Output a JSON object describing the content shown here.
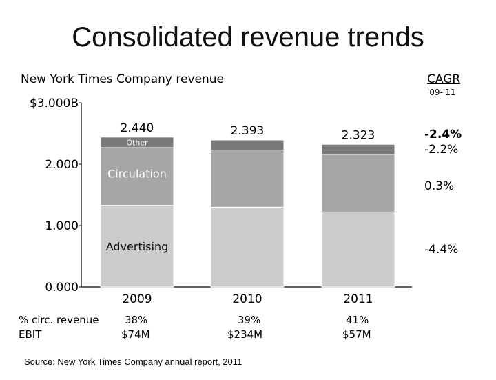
{
  "page_title": "Consolidated revenue trends",
  "cagr": {
    "heading": "CAGR",
    "period": "'09-'11",
    "values": [
      "-2.4%",
      "-2.2%",
      "0.3%",
      "-4.4%"
    ]
  },
  "chart_data": {
    "type": "bar",
    "stacked": true,
    "title": "New York Times Company revenue",
    "categories": [
      "2009",
      "2010",
      "2011"
    ],
    "series": [
      {
        "name": "Advertising",
        "values": [
          1.33,
          1.3,
          1.22
        ],
        "color": "#cccccc"
      },
      {
        "name": "Circulation",
        "values": [
          0.94,
          0.93,
          0.94
        ],
        "color": "#a6a6a6"
      },
      {
        "name": "Other",
        "values": [
          0.17,
          0.163,
          0.163
        ],
        "color": "#7a7a7a"
      }
    ],
    "totals": [
      "2.440",
      "2.393",
      "2.323"
    ],
    "ylim": [
      0,
      3.0
    ],
    "yticks": [
      {
        "value": 0,
        "label": "0.000"
      },
      {
        "value": 1,
        "label": "1.000"
      },
      {
        "value": 2,
        "label": "2.000"
      },
      {
        "value": 3,
        "label": "$3.000B"
      }
    ]
  },
  "rows": {
    "circ_label": "% circ. revenue",
    "circ_values": [
      "38%",
      "39%",
      "41%"
    ],
    "ebit_label": "EBIT",
    "ebit_values": [
      "$74M",
      "$234M",
      "$57M"
    ]
  },
  "source": "Source: New York Times Company annual report, 2011"
}
